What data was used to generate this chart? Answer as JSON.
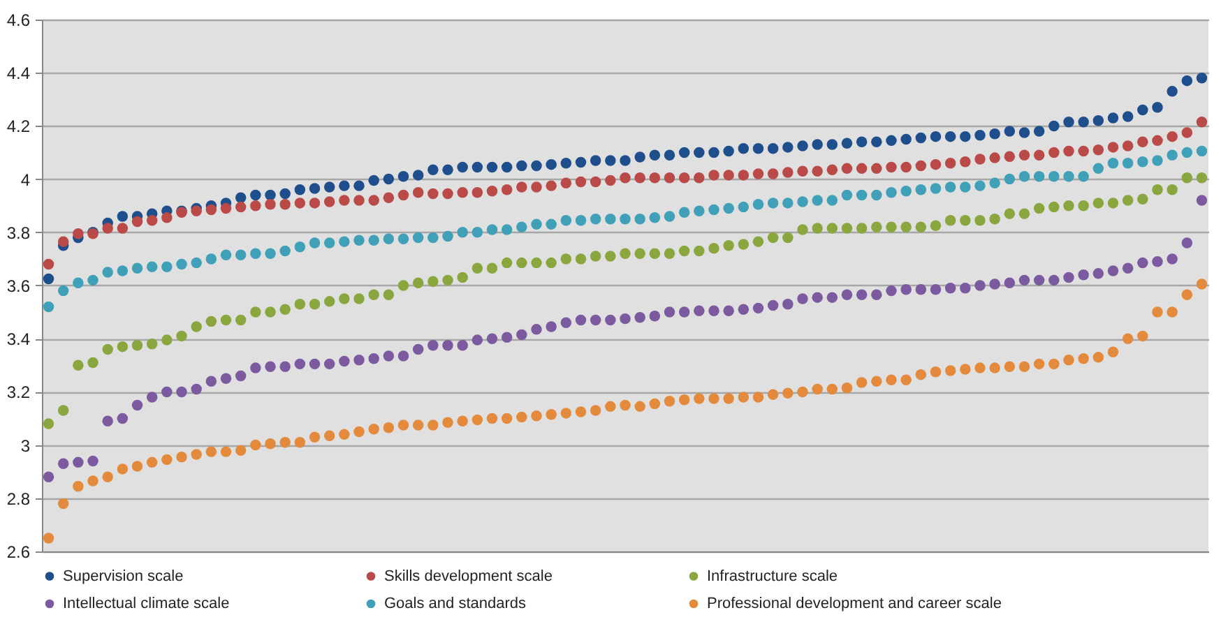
{
  "chart_data": {
    "type": "scatter",
    "categories": [
      null,
      null,
      null,
      null,
      null,
      null,
      null,
      null,
      null,
      null,
      null,
      null,
      null,
      null,
      null,
      null,
      null,
      null,
      null,
      null,
      null,
      null,
      null,
      null,
      null,
      null,
      null,
      null,
      null,
      null,
      null,
      null,
      null,
      null,
      null,
      null,
      null,
      null,
      null,
      null,
      null,
      null,
      null,
      null,
      null,
      null,
      null,
      null,
      null,
      null,
      null,
      null,
      null,
      null,
      null,
      null,
      null,
      null,
      null,
      null,
      null,
      null,
      null,
      null,
      null,
      null,
      null,
      null,
      null,
      null,
      null,
      null,
      null,
      null,
      null,
      null,
      null,
      null,
      null
    ],
    "series": [
      {
        "name": "Supervision scale",
        "color": "#1f4e8c",
        "values": [
          3.625,
          3.75,
          3.78,
          3.8,
          3.835,
          3.86,
          3.86,
          3.87,
          3.88,
          3.88,
          3.89,
          3.9,
          3.91,
          3.93,
          3.94,
          3.94,
          3.945,
          3.96,
          3.965,
          3.97,
          3.975,
          3.975,
          3.995,
          4.0,
          4.01,
          4.015,
          4.035,
          4.035,
          4.045,
          4.045,
          4.045,
          4.045,
          4.05,
          4.05,
          4.055,
          4.06,
          4.063,
          4.07,
          4.07,
          4.07,
          4.083,
          4.09,
          4.09,
          4.1,
          4.1,
          4.1,
          4.105,
          4.115,
          4.115,
          4.115,
          4.12,
          4.125,
          4.13,
          4.13,
          4.135,
          4.14,
          4.14,
          4.145,
          4.15,
          4.155,
          4.16,
          4.16,
          4.16,
          4.165,
          4.17,
          4.18,
          4.175,
          4.18,
          4.2,
          4.215,
          4.215,
          4.22,
          4.23,
          4.235,
          4.26,
          4.27,
          4.33,
          4.37,
          4.38
        ]
      },
      {
        "name": "Skills development scale",
        "color": "#b94a48",
        "values": [
          3.68,
          3.765,
          3.795,
          3.795,
          3.815,
          3.815,
          3.84,
          3.845,
          3.855,
          3.875,
          3.88,
          3.885,
          3.89,
          3.895,
          3.9,
          3.905,
          3.905,
          3.91,
          3.91,
          3.915,
          3.92,
          3.92,
          3.92,
          3.93,
          3.94,
          3.95,
          3.945,
          3.945,
          3.95,
          3.95,
          3.955,
          3.96,
          3.97,
          3.97,
          3.975,
          3.985,
          3.99,
          3.99,
          3.995,
          4.005,
          4.005,
          4.005,
          4.005,
          4.005,
          4.005,
          4.015,
          4.015,
          4.015,
          4.02,
          4.02,
          4.025,
          4.03,
          4.03,
          4.035,
          4.04,
          4.04,
          4.04,
          4.045,
          4.045,
          4.05,
          4.055,
          4.06,
          4.065,
          4.075,
          4.08,
          4.085,
          4.09,
          4.09,
          4.1,
          4.105,
          4.105,
          4.11,
          4.12,
          4.125,
          4.14,
          4.145,
          4.16,
          4.175,
          4.215
        ]
      },
      {
        "name": "Infrastructure scale",
        "color": "#8aa63f",
        "values": [
          3.08,
          3.13,
          3.3,
          3.31,
          3.36,
          3.37,
          3.375,
          3.38,
          3.395,
          3.41,
          3.445,
          3.465,
          3.47,
          3.47,
          3.5,
          3.5,
          3.51,
          3.53,
          3.53,
          3.54,
          3.55,
          3.55,
          3.565,
          3.565,
          3.6,
          3.61,
          3.615,
          3.62,
          3.63,
          3.665,
          3.665,
          3.685,
          3.685,
          3.685,
          3.685,
          3.7,
          3.7,
          3.71,
          3.71,
          3.72,
          3.72,
          3.72,
          3.72,
          3.73,
          3.73,
          3.74,
          3.75,
          3.755,
          3.765,
          3.78,
          3.78,
          3.81,
          3.815,
          3.815,
          3.815,
          3.815,
          3.82,
          3.82,
          3.82,
          3.82,
          3.825,
          3.845,
          3.845,
          3.845,
          3.85,
          3.87,
          3.87,
          3.89,
          3.895,
          3.9,
          3.9,
          3.91,
          3.91,
          3.92,
          3.925,
          3.96,
          3.96,
          4.005,
          4.005
        ]
      },
      {
        "name": "Intellectual climate scale",
        "color": "#7b5aa0",
        "values": [
          2.88,
          2.93,
          2.935,
          2.94,
          3.09,
          3.1,
          3.15,
          3.18,
          3.2,
          3.2,
          3.21,
          3.24,
          3.25,
          3.26,
          3.29,
          3.295,
          3.295,
          3.305,
          3.305,
          3.305,
          3.315,
          3.32,
          3.325,
          3.335,
          3.335,
          3.36,
          3.375,
          3.375,
          3.375,
          3.395,
          3.4,
          3.405,
          3.415,
          3.435,
          3.445,
          3.46,
          3.47,
          3.47,
          3.47,
          3.475,
          3.48,
          3.485,
          3.5,
          3.5,
          3.505,
          3.505,
          3.505,
          3.51,
          3.515,
          3.525,
          3.53,
          3.55,
          3.555,
          3.555,
          3.565,
          3.565,
          3.565,
          3.58,
          3.585,
          3.585,
          3.585,
          3.59,
          3.59,
          3.6,
          3.605,
          3.61,
          3.62,
          3.62,
          3.62,
          3.63,
          3.64,
          3.645,
          3.655,
          3.665,
          3.685,
          3.69,
          3.7,
          3.76,
          3.92
        ]
      },
      {
        "name": "Goals and standards",
        "color": "#3fa0b8",
        "values": [
          3.52,
          3.58,
          3.61,
          3.62,
          3.65,
          3.655,
          3.665,
          3.67,
          3.67,
          3.68,
          3.685,
          3.7,
          3.715,
          3.715,
          3.72,
          3.72,
          3.73,
          3.745,
          3.76,
          3.76,
          3.765,
          3.77,
          3.77,
          3.775,
          3.775,
          3.78,
          3.78,
          3.785,
          3.8,
          3.8,
          3.81,
          3.81,
          3.82,
          3.83,
          3.83,
          3.845,
          3.845,
          3.85,
          3.85,
          3.85,
          3.85,
          3.855,
          3.86,
          3.875,
          3.88,
          3.885,
          3.89,
          3.895,
          3.905,
          3.91,
          3.91,
          3.915,
          3.92,
          3.92,
          3.94,
          3.94,
          3.94,
          3.95,
          3.955,
          3.96,
          3.965,
          3.97,
          3.97,
          3.975,
          3.985,
          4.0,
          4.01,
          4.01,
          4.01,
          4.01,
          4.01,
          4.04,
          4.06,
          4.06,
          4.065,
          4.07,
          4.09,
          4.1,
          4.105
        ]
      },
      {
        "name": "Professional development and career scale",
        "color": "#e38a3c",
        "values": [
          2.65,
          2.78,
          2.845,
          2.865,
          2.88,
          2.91,
          2.92,
          2.935,
          2.945,
          2.955,
          2.965,
          2.975,
          2.975,
          2.98,
          3.0,
          3.005,
          3.01,
          3.01,
          3.03,
          3.035,
          3.04,
          3.05,
          3.06,
          3.065,
          3.075,
          3.075,
          3.075,
          3.085,
          3.09,
          3.095,
          3.1,
          3.1,
          3.105,
          3.11,
          3.115,
          3.12,
          3.125,
          3.13,
          3.145,
          3.15,
          3.145,
          3.155,
          3.165,
          3.17,
          3.175,
          3.175,
          3.175,
          3.18,
          3.18,
          3.19,
          3.195,
          3.2,
          3.21,
          3.21,
          3.215,
          3.235,
          3.24,
          3.245,
          3.245,
          3.265,
          3.275,
          3.28,
          3.285,
          3.29,
          3.29,
          3.295,
          3.295,
          3.305,
          3.305,
          3.32,
          3.325,
          3.33,
          3.35,
          3.4,
          3.41,
          3.5,
          3.5,
          3.565,
          3.605
        ]
      }
    ],
    "ylim": [
      2.6,
      4.6
    ],
    "yticks": [
      2.6,
      2.8,
      3,
      3.2,
      3.4,
      3.6,
      3.8,
      4,
      4.2,
      4.4,
      4.6
    ],
    "grid": "y",
    "legend": "bottom",
    "marker": "circle",
    "tick_labels": "y"
  }
}
